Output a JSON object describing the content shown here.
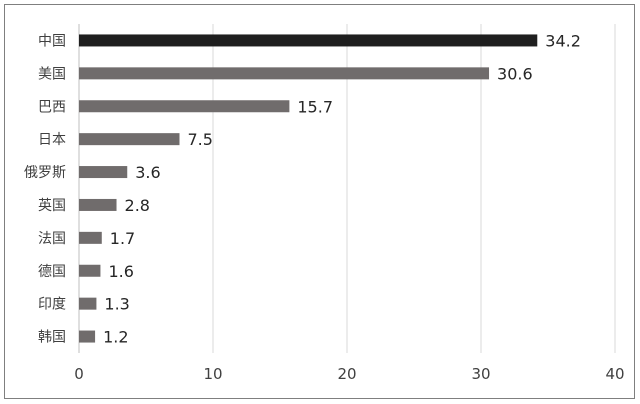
{
  "chart_data": {
    "type": "bar",
    "orientation": "horizontal",
    "categories": [
      "中国",
      "美国",
      "巴西",
      "日本",
      "俄罗斯",
      "英国",
      "法国",
      "德国",
      "印度",
      "韩国"
    ],
    "values": [
      34.2,
      30.6,
      15.7,
      7.5,
      3.6,
      2.8,
      1.7,
      1.6,
      1.3,
      1.2
    ],
    "value_labels": [
      "34.2",
      "30.6",
      "15.7",
      "7.5",
      "3.6",
      "2.8",
      "1.7",
      "1.6",
      "1.3",
      "1.2"
    ],
    "x_ticks": [
      "0",
      "10",
      "20",
      "30",
      "40"
    ],
    "xlim": [
      0,
      40
    ],
    "grid": "vertical",
    "title": "",
    "xlabel": "",
    "ylabel": "",
    "colors": {
      "highlight": "#1f1f1f",
      "default": "#706c6c",
      "grid": "#d9d9d9",
      "axis": "#bfbfbf"
    }
  }
}
